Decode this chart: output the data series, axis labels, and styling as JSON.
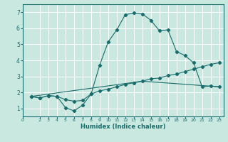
{
  "xlabel": "Humidex (Indice chaleur)",
  "xlim": [
    0,
    23.5
  ],
  "ylim": [
    0.5,
    7.5
  ],
  "xticks": [
    0,
    2,
    3,
    4,
    5,
    6,
    7,
    8,
    9,
    10,
    11,
    12,
    13,
    14,
    15,
    16,
    17,
    18,
    19,
    20,
    21,
    22,
    23
  ],
  "xtick_labels": [
    "0",
    "2",
    "3",
    "4",
    "5",
    "6",
    "7",
    "8",
    "9",
    "10",
    "11",
    "12",
    "13",
    "14",
    "15",
    "16",
    "17",
    "18",
    "19",
    "20",
    "21",
    "22",
    "23"
  ],
  "yticks": [
    1,
    2,
    3,
    4,
    5,
    6,
    7
  ],
  "background_color": "#c8e8e0",
  "line_color": "#1a6b6b",
  "grid_color": "#ffffff",
  "line1_x": [
    1,
    2,
    3,
    4,
    5,
    6,
    7,
    8,
    9,
    10,
    11,
    12,
    13,
    14,
    15,
    16,
    17,
    18,
    19,
    20,
    21,
    22,
    23
  ],
  "line1_y": [
    1.75,
    1.65,
    1.8,
    1.75,
    1.05,
    0.85,
    1.2,
    1.9,
    3.7,
    5.15,
    5.9,
    6.85,
    6.95,
    6.9,
    6.5,
    5.85,
    5.9,
    4.55,
    4.3,
    3.85,
    2.35,
    2.4,
    2.35
  ],
  "line2_x": [
    1,
    2,
    3,
    4,
    5,
    6,
    7,
    8,
    9,
    10,
    11,
    12,
    13,
    14,
    15,
    16,
    17,
    18,
    19,
    20,
    21,
    22,
    23
  ],
  "line2_y": [
    1.75,
    1.65,
    1.8,
    1.75,
    1.55,
    1.45,
    1.5,
    1.9,
    2.1,
    2.2,
    2.35,
    2.5,
    2.6,
    2.7,
    2.85,
    2.9,
    3.05,
    3.15,
    3.3,
    3.45,
    3.6,
    3.75,
    3.85
  ],
  "line3_x": [
    1,
    14,
    23
  ],
  "line3_y": [
    1.75,
    2.7,
    2.35
  ]
}
